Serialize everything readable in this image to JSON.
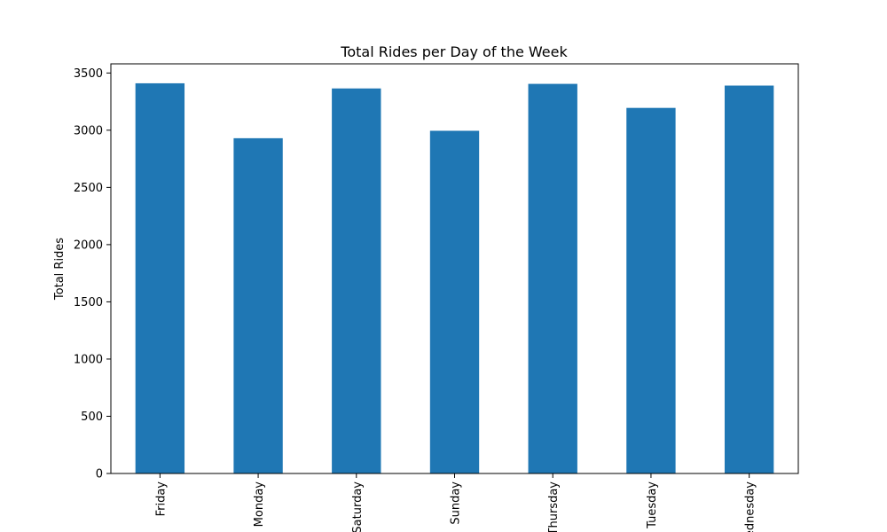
{
  "chart_data": {
    "type": "bar",
    "title": "Total Rides per Day of the Week",
    "xlabel": "",
    "ylabel": "Total Rides",
    "categories": [
      "Friday",
      "Monday",
      "Saturday",
      "Sunday",
      "Thursday",
      "Tuesday",
      "Wednesday"
    ],
    "values": [
      3410,
      2930,
      3365,
      2995,
      3405,
      3195,
      3390
    ],
    "ylim": [
      0,
      3580
    ],
    "yticks": [
      0,
      500,
      1000,
      1500,
      2000,
      2500,
      3000,
      3500
    ],
    "grid": false,
    "bar_color": "#1f77b4"
  }
}
